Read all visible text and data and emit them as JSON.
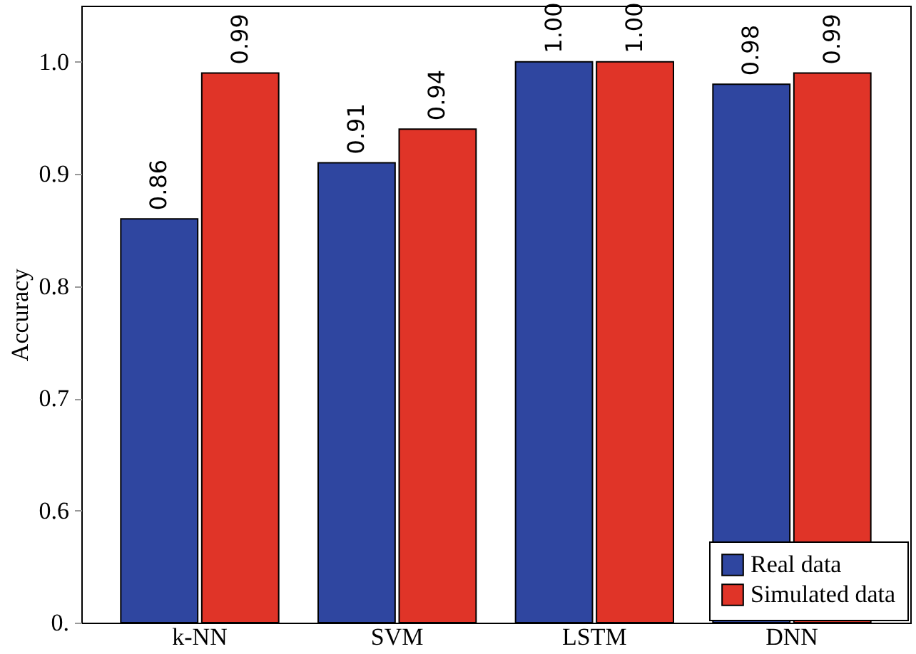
{
  "chart_data": {
    "type": "bar",
    "ylabel": "Accuracy",
    "categories": [
      "k-NN",
      "SVM",
      "LSTM",
      "DNN"
    ],
    "series": [
      {
        "name": "Real data",
        "color": "#2f46a0",
        "values": [
          0.86,
          0.91,
          1.0,
          0.98
        ]
      },
      {
        "name": "Simulated data",
        "color": "#e03428",
        "values": [
          0.99,
          0.94,
          1.0,
          0.99
        ]
      }
    ],
    "ylim": [
      0.5,
      1.05
    ],
    "yticks": [
      {
        "value": 0.5,
        "label": "0."
      },
      0.6,
      0.7,
      0.8,
      0.9,
      {
        "value": 1.0,
        "label": "1.0"
      }
    ],
    "value_labels": [
      [
        "0.86",
        "0.91",
        "1.00",
        "0.98"
      ],
      [
        "0.99",
        "0.94",
        "1.00",
        "0.99"
      ]
    ],
    "legend": "bottom right",
    "grid": false
  }
}
